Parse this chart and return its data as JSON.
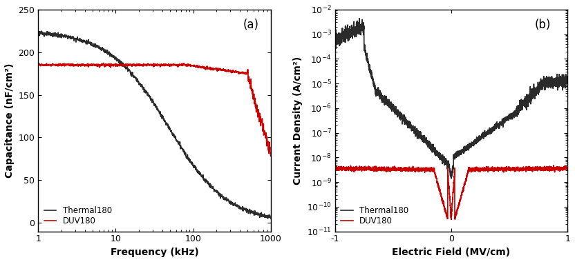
{
  "panel_a": {
    "title": "(a)",
    "xlabel": "Frequency (kHz)",
    "ylabel": "Capacitance (nF/cm²)",
    "xlim": [
      1,
      1000
    ],
    "ylim": [
      -10,
      250
    ],
    "yticks": [
      0,
      50,
      100,
      150,
      200,
      250
    ],
    "xticks": [
      1,
      10,
      100,
      1000
    ],
    "legend": [
      "Thermal180",
      "DUV180"
    ],
    "colors": [
      "#2a2a2a",
      "#cc0000"
    ],
    "linewidths": [
      1.2,
      1.2
    ]
  },
  "panel_b": {
    "title": "(b)",
    "xlabel": "Electric Field (MV/cm)",
    "ylabel": "Current Density (A/cm²)",
    "xlim": [
      -1,
      1
    ],
    "ylim": [
      1e-11,
      0.01
    ],
    "xticks": [
      -1,
      0,
      1
    ],
    "legend": [
      "Thermal180",
      "DUV180"
    ],
    "colors": [
      "#2a2a2a",
      "#cc0000"
    ],
    "linewidths": [
      1.2,
      1.2
    ]
  },
  "figure_bg": "#ffffff"
}
